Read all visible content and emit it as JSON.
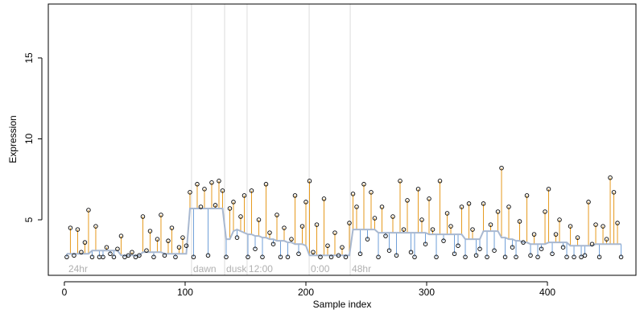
{
  "chart_data": {
    "type": "scatter",
    "x_label": "Sample index",
    "y_label": "Expression",
    "xlim": [
      -13.3,
      473.3
    ],
    "ylim": [
      1.57,
      18.33
    ],
    "xticks": [
      0,
      100,
      200,
      300,
      400
    ],
    "yticks": [
      5,
      10,
      15
    ],
    "colors": {
      "point": "#000000",
      "above": "#e69a1e",
      "below": "#6f9fd8",
      "fit": "#a8b8d0",
      "boundary": "#dcdcdc"
    },
    "annotations": [
      {
        "text": "24hr",
        "x": 2
      },
      {
        "text": "dawn",
        "x": 105.3
      },
      {
        "text": "dusk",
        "x": 132.7
      },
      {
        "text": "12:00",
        "x": 151.3
      },
      {
        "text": "0:00",
        "x": 202.7
      },
      {
        "text": "48hr",
        "x": 236.7
      }
    ],
    "x": [
      2,
      5,
      8,
      11,
      14,
      17,
      20,
      23,
      26,
      29,
      32,
      35,
      38,
      41,
      44,
      47,
      50,
      53,
      56,
      59,
      62,
      65,
      68,
      71,
      74,
      77,
      80,
      83,
      86,
      89,
      92,
      95,
      98,
      101,
      104,
      107,
      110,
      113,
      116,
      119,
      122,
      125,
      128,
      131,
      134,
      137,
      140,
      143,
      146,
      149,
      152,
      155,
      158,
      161,
      164,
      167,
      170,
      173,
      176,
      179,
      182,
      185,
      188,
      191,
      194,
      197,
      200,
      203,
      206,
      209,
      212,
      215,
      218,
      221,
      224,
      227,
      230,
      233,
      236,
      239,
      242,
      245,
      248,
      251,
      254,
      257,
      260,
      263,
      266,
      269,
      272,
      275,
      278,
      281,
      284,
      287,
      290,
      293,
      296,
      299,
      302,
      305,
      308,
      311,
      314,
      317,
      320,
      323,
      326,
      329,
      332,
      335,
      338,
      341,
      344,
      347,
      350,
      353,
      356,
      359,
      362,
      365,
      368,
      371,
      374,
      377,
      380,
      383,
      386,
      389,
      392,
      395,
      398,
      401,
      404,
      407,
      410,
      413,
      416,
      419,
      422,
      425,
      428,
      431,
      434,
      437,
      440,
      443,
      446,
      449,
      452,
      455,
      458,
      461
    ],
    "values": [
      2.7,
      4.5,
      2.8,
      4.4,
      3.0,
      3.6,
      5.6,
      2.7,
      4.6,
      2.7,
      2.7,
      3.3,
      2.9,
      2.7,
      3.2,
      4.0,
      2.7,
      2.8,
      3.0,
      2.7,
      2.8,
      5.2,
      3.1,
      4.3,
      2.7,
      3.8,
      5.3,
      2.8,
      3.7,
      4.5,
      2.7,
      3.3,
      3.9,
      3.4,
      6.7,
      2.7,
      7.2,
      5.8,
      6.9,
      2.8,
      7.3,
      5.9,
      7.4,
      6.8,
      2.7,
      5.7,
      6.1,
      3.9,
      5.2,
      6.5,
      2.7,
      6.8,
      3.2,
      5.0,
      2.7,
      7.2,
      4.2,
      3.5,
      5.3,
      2.7,
      4.5,
      2.7,
      3.8,
      6.5,
      2.9,
      4.6,
      6.1,
      7.4,
      3.0,
      4.7,
      2.7,
      6.3,
      3.4,
      2.7,
      4.2,
      2.8,
      3.3,
      2.7,
      4.8,
      6.6,
      5.8,
      2.9,
      7.2,
      3.8,
      6.7,
      5.1,
      2.7,
      5.8,
      4.0,
      3.1,
      5.2,
      2.8,
      7.4,
      4.4,
      6.2,
      3.0,
      2.7,
      6.9,
      5.0,
      3.5,
      6.3,
      4.4,
      2.7,
      7.4,
      3.7,
      5.4,
      4.6,
      2.9,
      3.4,
      5.8,
      2.7,
      6.0,
      4.4,
      2.8,
      3.2,
      6.0,
      2.7,
      4.7,
      3.1,
      5.5,
      8.2,
      2.7,
      5.8,
      3.3,
      2.7,
      4.9,
      3.6,
      6.5,
      2.8,
      4.1,
      2.7,
      3.2,
      5.5,
      6.9,
      2.9,
      4.1,
      5.0,
      3.3,
      2.7,
      4.6,
      2.7,
      3.9,
      2.7,
      2.8,
      6.1,
      3.5,
      4.7,
      2.7,
      4.6,
      3.8,
      7.6,
      6.7,
      4.8,
      2.7
    ],
    "fit": [
      2.9,
      2.9,
      2.9,
      2.9,
      2.9,
      2.9,
      2.9,
      3.1,
      3.1,
      3.1,
      3.1,
      3.1,
      3.1,
      3.1,
      3.1,
      2.8,
      2.8,
      2.8,
      2.8,
      2.8,
      2.8,
      3.0,
      3.0,
      3.0,
      3.0,
      3.0,
      3.0,
      2.9,
      2.9,
      2.9,
      2.9,
      2.9,
      2.9,
      2.9,
      5.7,
      5.7,
      5.7,
      5.7,
      5.7,
      5.7,
      5.7,
      5.7,
      5.7,
      5.7,
      3.8,
      3.8,
      4.3,
      4.4,
      4.3,
      4.2,
      4.1,
      4.1,
      4.0,
      4.0,
      3.9,
      3.9,
      3.8,
      3.8,
      3.7,
      3.7,
      3.7,
      3.6,
      3.6,
      3.5,
      3.5,
      3.5,
      3.4,
      2.8,
      2.8,
      2.8,
      2.8,
      2.8,
      2.8,
      2.8,
      2.8,
      2.8,
      2.8,
      2.8,
      2.8,
      4.4,
      4.4,
      4.4,
      4.4,
      4.4,
      4.4,
      4.4,
      4.2,
      4.2,
      4.2,
      4.2,
      4.2,
      4.2,
      4.2,
      4.2,
      4.2,
      4.2,
      4.2,
      4.2,
      4.2,
      4.2,
      4.1,
      4.1,
      4.1,
      4.1,
      4.1,
      4.1,
      4.1,
      4.1,
      4.1,
      4.1,
      3.8,
      3.8,
      3.8,
      3.8,
      3.8,
      4.3,
      4.3,
      4.3,
      4.3,
      4.3,
      3.9,
      3.9,
      3.8,
      3.8,
      3.7,
      3.7,
      3.6,
      3.6,
      3.5,
      3.5,
      3.5,
      3.5,
      3.5,
      3.6,
      3.6,
      3.6,
      3.6,
      3.6,
      3.6,
      3.4,
      3.4,
      3.4,
      3.4,
      3.4,
      3.4,
      3.4,
      3.5,
      3.5,
      3.5,
      3.5,
      3.5,
      3.5,
      3.5,
      3.5
    ]
  }
}
